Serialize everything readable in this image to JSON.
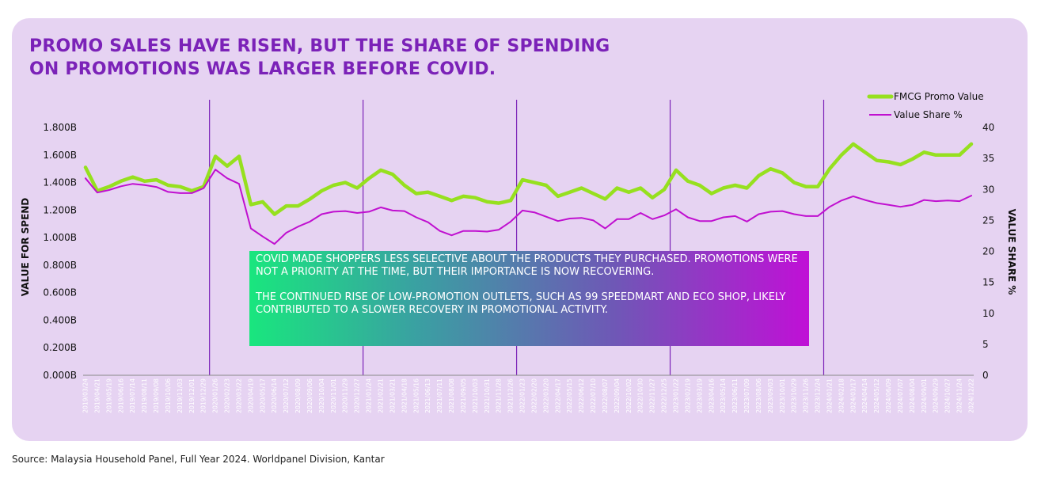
{
  "title_lines": [
    "PROMO SALES HAVE RISEN, BUT THE SHARE OF SPENDING",
    "ON PROMOTIONS WAS LARGER BEFORE COVID."
  ],
  "note": {
    "para1": "COVID MADE SHOPPERS LESS SELECTIVE ABOUT THE PRODUCTS THEY PURCHASED. PROMOTIONS WERE NOT A PRIORITY AT THE TIME, BUT THEIR IMPORTANCE IS NOW RECOVERING.",
    "para2": "THE CONTINUED RISE OF LOW-PROMOTION OUTLETS, SUCH AS 99 SPEEDMART AND ECO SHOP, LIKELY CONTRIBUTED TO A SLOWER RECOVERY IN PROMOTIONAL ACTIVITY."
  },
  "source": "Source: Malaysia Household Panel, Full Year 2024. Worldpanel Division, Kantar",
  "colors": {
    "promo": "#96e01f",
    "share": "#c010d0",
    "divider": "#7b22b8",
    "title": "#7b22b8",
    "panel": "#e6d3f2"
  },
  "chart_data": {
    "type": "line",
    "ylabel": "VALUE FOR SPEND",
    "y2label": "VALUE SHARE %",
    "ylim": [
      0,
      1.8
    ],
    "y_ticks": [
      "0.000B",
      "0.200B",
      "0.400B",
      "0.600B",
      "0.800B",
      "1.000B",
      "1.200B",
      "1.400B",
      "1.600B",
      "1.800B"
    ],
    "y2lim": [
      0,
      40
    ],
    "y2_ticks": [
      "0",
      "5",
      "10",
      "15",
      "20",
      "25",
      "30",
      "35",
      "40"
    ],
    "legend_position": "top-right",
    "year_dividers_after": [
      "2019/12/29",
      "2020/12/27",
      "2021/12/26",
      "2022/12/25",
      "2023/12/24"
    ],
    "x": [
      "2019/03/24",
      "2019/04/21",
      "2019/05/19",
      "2019/06/16",
      "2019/07/14",
      "2019/08/11",
      "2019/09/08",
      "2019/10/06",
      "2019/11/03",
      "2019/12/01",
      "2019/12/29",
      "2020/01/26",
      "2020/02/23",
      "2020/03/22",
      "2020/04/19",
      "2020/05/17",
      "2020/06/14",
      "2020/07/12",
      "2020/08/09",
      "2020/09/06",
      "2020/10/04",
      "2020/11/01",
      "2020/11/29",
      "2020/12/27",
      "2021/01/24",
      "2021/02/21",
      "2021/03/21",
      "2021/04/18",
      "2021/05/16",
      "2021/06/13",
      "2021/07/11",
      "2021/08/08",
      "2021/09/05",
      "2021/10/03",
      "2021/10/31",
      "2021/11/28",
      "2021/12/26",
      "2022/01/23",
      "2022/02/20",
      "2022/03/20",
      "2022/04/17",
      "2022/05/15",
      "2022/06/12",
      "2022/07/10",
      "2022/08/07",
      "2022/09/04",
      "2022/10/02",
      "2022/10/30",
      "2022/11/27",
      "2022/12/25",
      "2023/01/22",
      "2023/02/19",
      "2023/03/19",
      "2023/04/16",
      "2023/05/14",
      "2023/06/11",
      "2023/07/09",
      "2023/08/06",
      "2023/09/03",
      "2023/10/01",
      "2023/10/29",
      "2023/11/26",
      "2023/12/24",
      "2024/01/21",
      "2024/02/18",
      "2024/03/17",
      "2024/04/14",
      "2024/05/12",
      "2024/06/09",
      "2024/07/07",
      "2024/08/04",
      "2024/09/01",
      "2024/09/29",
      "2024/10/27",
      "2024/11/24",
      "2024/12/22"
    ],
    "x_labels": [
      "2019/03/24",
      "2019/04/21",
      "2019/05/19",
      "2019/06/16",
      "2019/07/14",
      "2019/08/11",
      "2019/09/08",
      "2019/10/06",
      "2019/11/03",
      "2019/12/01",
      "2019/12/29",
      "2020/01/26",
      "2020/02/23",
      "2020/03/22",
      "2020/04/19",
      "2020/05/17",
      "2020/06/14",
      "2020/07/12",
      "2020/08/09",
      "2020/09/06",
      "2020/10/04",
      "2020/11/01",
      "2020/11/29",
      "2020/12/27",
      "2021/01/24",
      "2021/02/21",
      "2021/03/21",
      "2021/04/18",
      "2021/05/16",
      "2021/06/13",
      "2021/07/11",
      "2021/08/08",
      "2021/09/05",
      "2021/10/03",
      "2021/10/31",
      "2021/11/28",
      "2021/12/26",
      "2022/01/23",
      "2022/02/20",
      "2022/03/20",
      "2022/04/17",
      "2022/05/15",
      "2022/06/12",
      "2022/07/10",
      "2022/08/07",
      "2022/09/04",
      "2022/10/02",
      "2022/10/30",
      "2022/11/27",
      "2022/12/25",
      "2023/01/22",
      "2023/02/19",
      "2023/03/19",
      "2023/04/16",
      "2023/05/14",
      "2023/06/11",
      "2023/07/09",
      "2023/08/06",
      "2023/09/03",
      "2023/10/01",
      "2023/10/29",
      "2023/11/26",
      "2023/12/24",
      "2024/01/21",
      "2024/02/18",
      "2024/03/17",
      "2024/04/14",
      "2024/05/12",
      "2024/06/09",
      "2024/07/07",
      "2024/08/04",
      "2024/09/01",
      "2024/09/29",
      "2024/10/27",
      "2024/11/24",
      "2024/12/22"
    ],
    "series": [
      {
        "name": "FMCG Promo Value",
        "axis": "left",
        "color": "#96e01f",
        "values": [
          1.51,
          1.34,
          1.37,
          1.41,
          1.44,
          1.41,
          1.42,
          1.38,
          1.37,
          1.34,
          1.37,
          1.59,
          1.52,
          1.59,
          1.24,
          1.26,
          1.17,
          1.23,
          1.23,
          1.28,
          1.34,
          1.38,
          1.4,
          1.36,
          1.43,
          1.49,
          1.46,
          1.38,
          1.32,
          1.33,
          1.3,
          1.27,
          1.3,
          1.29,
          1.26,
          1.25,
          1.27,
          1.42,
          1.4,
          1.38,
          1.3,
          1.33,
          1.36,
          1.32,
          1.28,
          1.36,
          1.33,
          1.36,
          1.29,
          1.35,
          1.49,
          1.41,
          1.38,
          1.32,
          1.36,
          1.38,
          1.36,
          1.45,
          1.5,
          1.47,
          1.4,
          1.37,
          1.37,
          1.5,
          1.6,
          1.68,
          1.62,
          1.56,
          1.55,
          1.53,
          1.57,
          1.62,
          1.6,
          1.6,
          1.6,
          1.68
        ]
      },
      {
        "name": "Value Share %",
        "axis": "right",
        "color": "#c010d0",
        "values": [
          31.8,
          29.5,
          29.9,
          30.5,
          30.9,
          30.7,
          30.4,
          29.6,
          29.4,
          29.4,
          30.2,
          33.2,
          31.8,
          30.9,
          23.7,
          22.4,
          21.2,
          23.0,
          24.0,
          24.8,
          26.0,
          26.4,
          26.5,
          26.2,
          26.4,
          27.1,
          26.6,
          26.5,
          25.5,
          24.7,
          23.3,
          22.6,
          23.3,
          23.3,
          23.2,
          23.5,
          24.8,
          26.6,
          26.3,
          25.6,
          24.9,
          25.3,
          25.4,
          25.0,
          23.7,
          25.2,
          25.2,
          26.2,
          25.2,
          25.8,
          26.8,
          25.5,
          24.9,
          24.9,
          25.5,
          25.7,
          24.8,
          26.0,
          26.4,
          26.5,
          26.0,
          25.7,
          25.7,
          27.2,
          28.2,
          28.9,
          28.3,
          27.8,
          27.5,
          27.2,
          27.5,
          28.3,
          28.1,
          28.2,
          28.1,
          29.0
        ]
      }
    ]
  }
}
